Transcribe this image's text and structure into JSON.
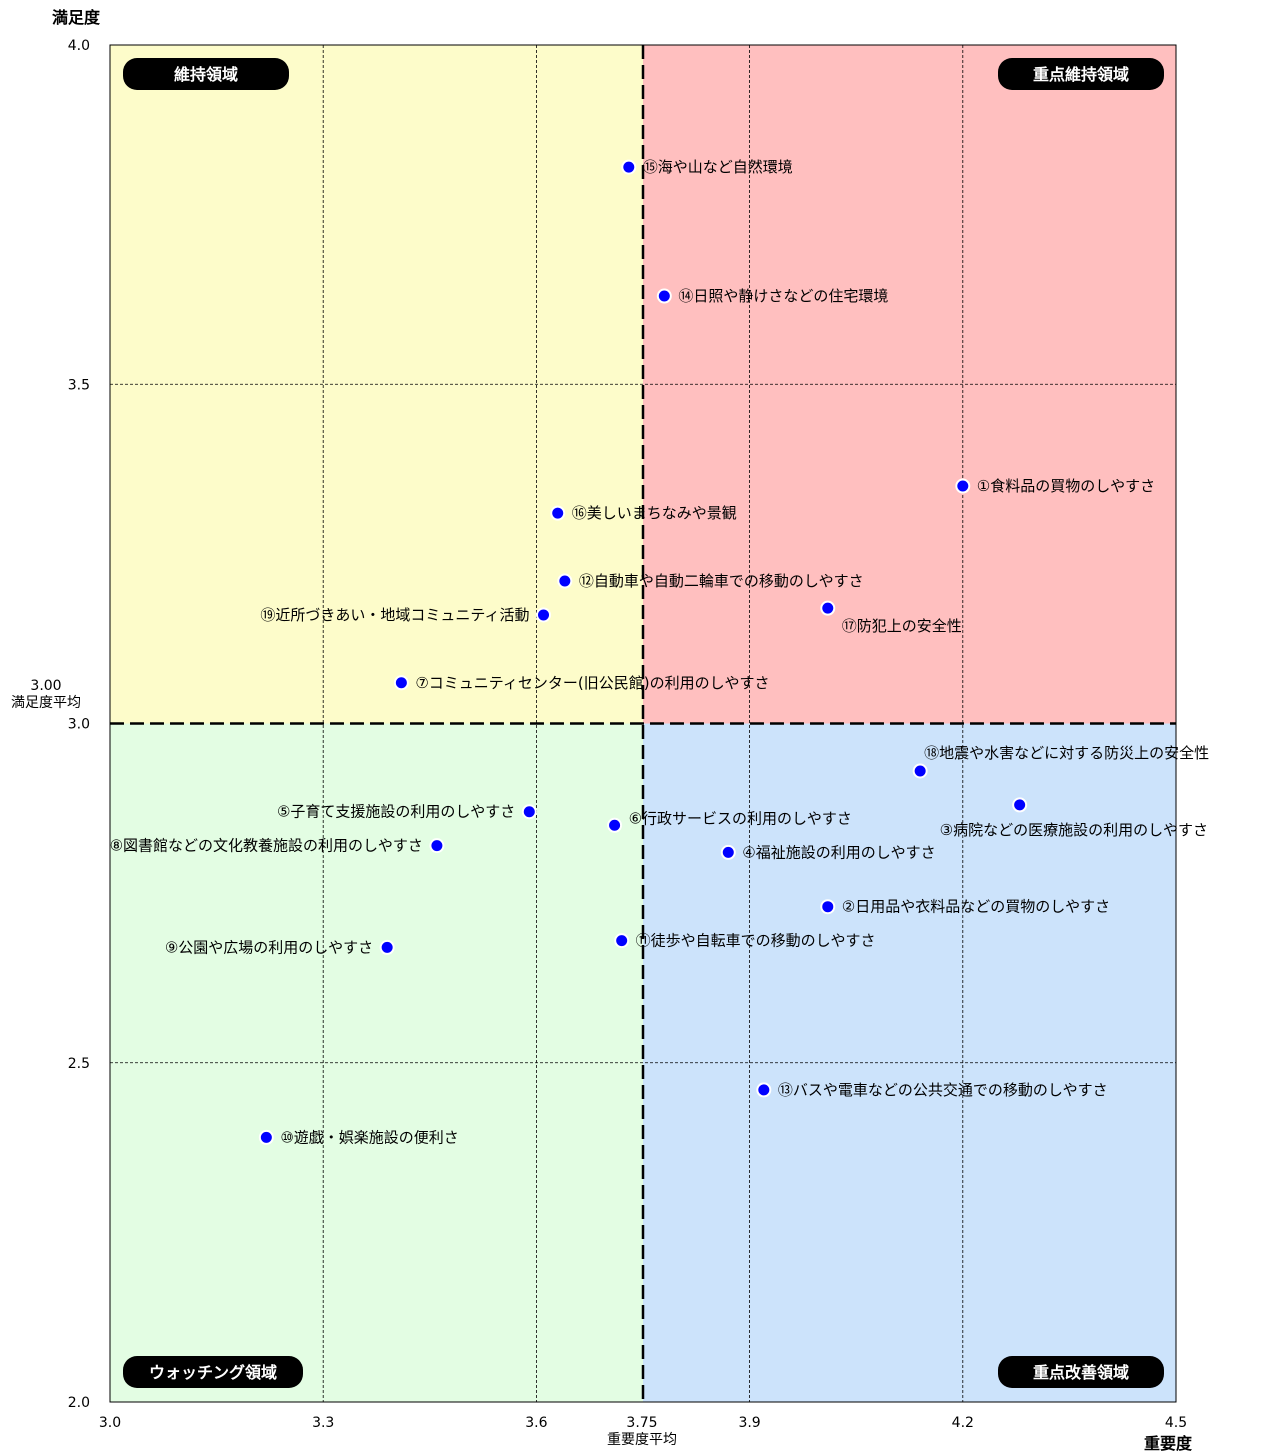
{
  "chart_data": {
    "type": "scatter",
    "xlabel": "重要度",
    "ylabel": "満足度",
    "xlim": [
      3.0,
      4.5
    ],
    "ylim": [
      2.0,
      4.0
    ],
    "x_ticks": [
      "3.0",
      "3.3",
      "3.6",
      "3.9",
      "4.2",
      "4.5"
    ],
    "y_ticks": [
      "2.0",
      "2.5",
      "3.0",
      "3.5",
      "4.0"
    ],
    "x_avg": {
      "value": 3.75,
      "tick": "3.75",
      "label": "重要度平均"
    },
    "y_avg": {
      "value": 3.0,
      "tick": "3.00",
      "label": "満足度平均"
    },
    "grid": true,
    "quadrants": [
      {
        "label": "維持領域",
        "color": "#fdfcca",
        "corner": "top-left"
      },
      {
        "label": "重点維持領域",
        "color": "#ffbfbf",
        "corner": "top-right"
      },
      {
        "label": "ウォッチング領域",
        "color": "#e3fde3",
        "corner": "bottom-left"
      },
      {
        "label": "重点改善領域",
        "color": "#cce3fb",
        "corner": "bottom-right"
      }
    ],
    "marker_color": "#0000ff",
    "points": [
      {
        "label": "①食料品の買物のしやすさ",
        "x": 4.2,
        "y": 3.35
      },
      {
        "label": "②日用品や衣料品などの買物のしやすさ",
        "x": 4.01,
        "y": 2.73
      },
      {
        "label": "③病院などの医療施設の利用のしやすさ",
        "x": 4.28,
        "y": 2.88
      },
      {
        "label": "④福祉施設の利用のしやすさ",
        "x": 3.87,
        "y": 2.81
      },
      {
        "label": "⑤子育て支援施設の利用のしやすさ",
        "x": 3.59,
        "y": 2.87
      },
      {
        "label": "⑥行政サービスの利用のしやすさ",
        "x": 3.71,
        "y": 2.85
      },
      {
        "label": "⑦コミュニティセンター(旧公民館)の利用のしやすさ",
        "x": 3.41,
        "y": 3.06
      },
      {
        "label": "⑧図書館などの文化教養施設の利用のしやすさ",
        "x": 3.46,
        "y": 2.82
      },
      {
        "label": "⑨公園や広場の利用のしやすさ",
        "x": 3.39,
        "y": 2.67
      },
      {
        "label": "⑩遊戯・娯楽施設の便利さ",
        "x": 3.22,
        "y": 2.39
      },
      {
        "label": "⑪徒歩や自転車での移動のしやすさ",
        "x": 3.72,
        "y": 2.68
      },
      {
        "label": "⑫自動車や自動二輪車での移動のしやすさ",
        "x": 3.64,
        "y": 3.21
      },
      {
        "label": "⑬バスや電車などの公共交通での移動のしやすさ",
        "x": 3.92,
        "y": 2.46
      },
      {
        "label": "⑭日照や静けさなどの住宅環境",
        "x": 3.78,
        "y": 3.63
      },
      {
        "label": "⑮海や山など自然環境",
        "x": 3.73,
        "y": 3.82
      },
      {
        "label": "⑯美しいまちなみや景観",
        "x": 3.63,
        "y": 3.31
      },
      {
        "label": "⑰防犯上の安全性",
        "x": 4.01,
        "y": 3.17
      },
      {
        "label": "⑱地震や水害などに対する防災上の安全性",
        "x": 4.14,
        "y": 2.93
      },
      {
        "label": "⑲近所づきあい・地域コミュニティ活動",
        "x": 3.61,
        "y": 3.16
      }
    ]
  }
}
